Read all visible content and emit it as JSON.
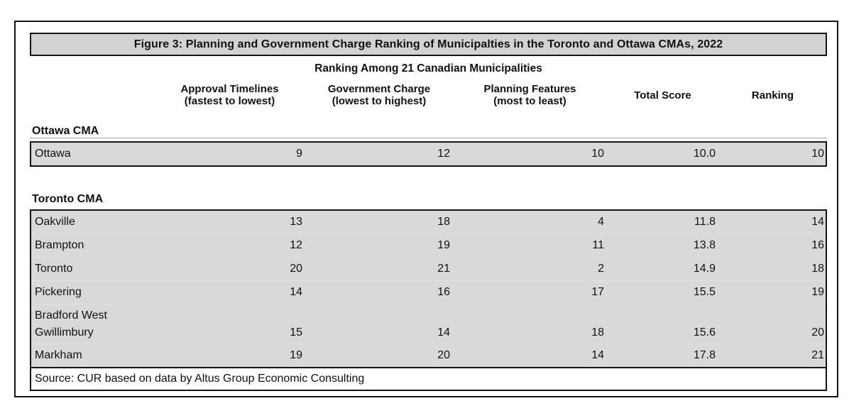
{
  "figure": {
    "title": "Figure 3: Planning and Government Charge Ranking of Municipalties in the Toronto and Ottawa CMAs, 2022",
    "subtitle": "Ranking Among 21 Canadian Municipalities",
    "source": "Source: CUR based on data by Altus Group Economic Consulting"
  },
  "colors": {
    "title_bar_bg": "#d2d2d2",
    "row_bg": "#d9d9d9",
    "border": "#151515"
  },
  "table": {
    "columns": [
      {
        "label": "",
        "sublabel": ""
      },
      {
        "label": "Approval Timelines",
        "sublabel": "(fastest to lowest)"
      },
      {
        "label": "Government Charge",
        "sublabel": "(lowest to highest)"
      },
      {
        "label": "Planning Features",
        "sublabel": "(most to least)"
      },
      {
        "label": "Total Score",
        "sublabel": ""
      },
      {
        "label": "Ranking",
        "sublabel": ""
      }
    ],
    "sections": [
      {
        "heading": "Ottawa CMA",
        "rows": [
          {
            "municipality": "Ottawa",
            "values": [
              "9",
              "12",
              "10",
              "10.0",
              "10"
            ]
          }
        ]
      },
      {
        "heading": "Toronto CMA",
        "rows": [
          {
            "municipality": "Oakville",
            "values": [
              "13",
              "18",
              "4",
              "11.8",
              "14"
            ]
          },
          {
            "municipality": "Brampton",
            "values": [
              "12",
              "19",
              "11",
              "13.8",
              "16"
            ]
          },
          {
            "municipality": "Toronto",
            "values": [
              "20",
              "21",
              "2",
              "14.9",
              "18"
            ]
          },
          {
            "municipality": "Pickering",
            "values": [
              "14",
              "16",
              "17",
              "15.5",
              "19"
            ]
          },
          {
            "municipality": "Bradford West\nGwillimbury",
            "values": [
              "15",
              "14",
              "18",
              "15.6",
              "20"
            ]
          },
          {
            "municipality": "Markham",
            "values": [
              "19",
              "20",
              "14",
              "17.8",
              "21"
            ]
          }
        ]
      }
    ]
  }
}
